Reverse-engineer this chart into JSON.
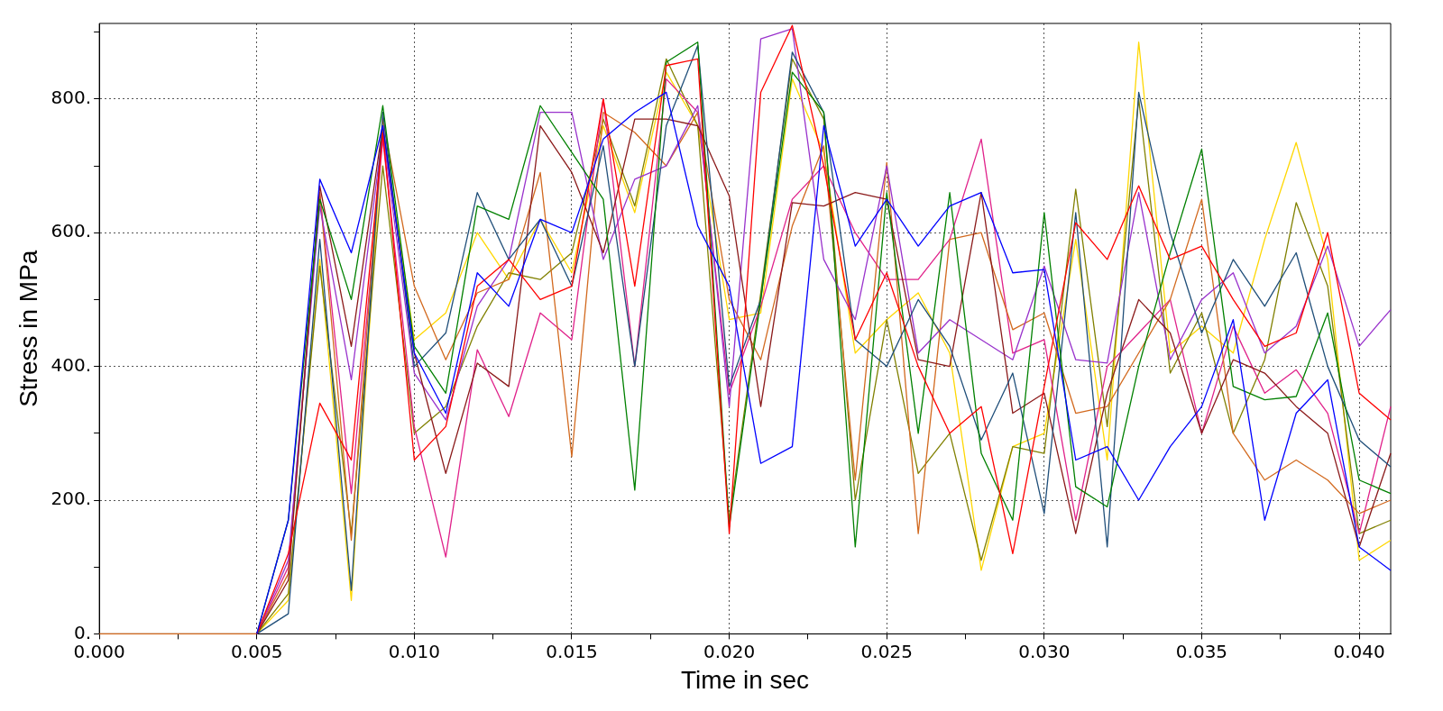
{
  "chart_data": {
    "type": "line",
    "xlabel": "Time in sec",
    "ylabel": "Stress in MPa",
    "x": [
      0,
      0.001,
      0.002,
      0.003,
      0.004,
      0.005,
      0.006,
      0.007,
      0.008,
      0.009,
      0.01,
      0.011,
      0.012,
      0.013,
      0.014,
      0.015,
      0.016,
      0.017,
      0.018,
      0.019,
      0.02,
      0.021,
      0.022,
      0.023,
      0.024,
      0.025,
      0.026,
      0.027,
      0.028,
      0.029,
      0.03,
      0.031,
      0.032,
      0.033,
      0.034,
      0.035,
      0.036,
      0.037,
      0.038,
      0.039,
      0.04,
      0.041
    ],
    "xlim": [
      0,
      0.041
    ],
    "ylim": [
      0,
      913
    ],
    "xticks": [
      {
        "value": 0,
        "label": "0.000"
      },
      {
        "value": 0.0025,
        "label": null
      },
      {
        "value": 0.005,
        "label": "0.005"
      },
      {
        "value": 0.0075,
        "label": null
      },
      {
        "value": 0.01,
        "label": "0.010"
      },
      {
        "value": 0.0125,
        "label": null
      },
      {
        "value": 0.015,
        "label": "0.015"
      },
      {
        "value": 0.0175,
        "label": null
      },
      {
        "value": 0.02,
        "label": "0.020"
      },
      {
        "value": 0.0225,
        "label": null
      },
      {
        "value": 0.025,
        "label": "0.025"
      },
      {
        "value": 0.0275,
        "label": null
      },
      {
        "value": 0.03,
        "label": "0.030"
      },
      {
        "value": 0.0325,
        "label": null
      },
      {
        "value": 0.035,
        "label": "0.035"
      },
      {
        "value": 0.0375,
        "label": null
      },
      {
        "value": 0.04,
        "label": "0.040"
      }
    ],
    "yticks": [
      {
        "value": 0,
        "label": "0."
      },
      {
        "value": 100,
        "label": null
      },
      {
        "value": 200,
        "label": "200."
      },
      {
        "value": 300,
        "label": null
      },
      {
        "value": 400,
        "label": "400."
      },
      {
        "value": 500,
        "label": null
      },
      {
        "value": 600,
        "label": "600."
      },
      {
        "value": 700,
        "label": null
      },
      {
        "value": 800,
        "label": "800."
      },
      {
        "value": 900,
        "label": null
      }
    ],
    "grid": true,
    "legend": false,
    "marker": "none",
    "line_style": "solid",
    "series": [
      {
        "color": "#0000ff",
        "values": [
          null,
          null,
          null,
          null,
          null,
          0,
          170,
          680,
          570,
          760,
          420,
          330,
          540,
          490,
          620,
          600,
          740,
          780,
          810,
          610,
          520,
          255,
          280,
          760,
          580,
          650,
          580,
          640,
          660,
          540,
          545,
          260,
          280,
          200,
          280,
          340,
          470,
          170,
          330,
          380,
          130,
          95
        ]
      },
      {
        "color": "#ff0000",
        "values": [
          null,
          null,
          null,
          null,
          null,
          0,
          120,
          345,
          260,
          750,
          260,
          310,
          520,
          560,
          500,
          520,
          800,
          520,
          850,
          860,
          150,
          810,
          910,
          700,
          440,
          540,
          400,
          300,
          340,
          120,
          370,
          615,
          560,
          670,
          560,
          580,
          500,
          430,
          450,
          600,
          360,
          320
        ]
      },
      {
        "color": "#008000",
        "values": [
          null,
          null,
          null,
          null,
          null,
          0,
          170,
          650,
          500,
          790,
          430,
          360,
          640,
          620,
          790,
          720,
          650,
          215,
          855,
          885,
          160,
          500,
          840,
          780,
          130,
          660,
          300,
          660,
          270,
          170,
          630,
          220,
          190,
          400,
          570,
          725,
          370,
          350,
          355,
          480,
          230,
          210
        ]
      },
      {
        "color": "#1f4e79",
        "values": [
          null,
          null,
          null,
          null,
          null,
          0,
          30,
          590,
          65,
          780,
          400,
          450,
          660,
          560,
          620,
          520,
          730,
          400,
          760,
          880,
          370,
          500,
          870,
          780,
          440,
          400,
          500,
          430,
          290,
          390,
          180,
          630,
          130,
          810,
          600,
          450,
          560,
          490,
          570,
          400,
          290,
          250
        ]
      },
      {
        "color": "#8b1a1a",
        "values": [
          null,
          null,
          null,
          null,
          null,
          0,
          80,
          670,
          430,
          760,
          420,
          240,
          405,
          370,
          760,
          690,
          570,
          770,
          770,
          760,
          655,
          340,
          645,
          640,
          660,
          650,
          410,
          400,
          660,
          330,
          360,
          150,
          360,
          500,
          450,
          300,
          410,
          390,
          340,
          300,
          130,
          270
        ]
      },
      {
        "color": "#9932cc",
        "values": [
          null,
          null,
          null,
          null,
          null,
          0,
          110,
          640,
          380,
          750,
          390,
          320,
          490,
          560,
          780,
          780,
          560,
          680,
          700,
          790,
          340,
          890,
          905,
          560,
          470,
          700,
          420,
          470,
          440,
          410,
          550,
          410,
          405,
          660,
          410,
          500,
          540,
          420,
          460,
          580,
          430,
          485
        ]
      },
      {
        "color": "#d2691e",
        "values": [
          0,
          0,
          0,
          0,
          0,
          0,
          90,
          660,
          140,
          770,
          520,
          410,
          510,
          530,
          690,
          265,
          780,
          750,
          700,
          780,
          500,
          410,
          610,
          730,
          230,
          705,
          150,
          590,
          600,
          455,
          480,
          330,
          340,
          420,
          500,
          650,
          300,
          230,
          260,
          230,
          180,
          200
        ]
      },
      {
        "color": "#e0218a",
        "values": [
          null,
          null,
          null,
          null,
          null,
          0,
          100,
          660,
          210,
          740,
          310,
          115,
          425,
          325,
          480,
          440,
          800,
          400,
          830,
          780,
          360,
          490,
          650,
          700,
          600,
          530,
          530,
          590,
          740,
          420,
          440,
          170,
          400,
          450,
          500,
          300,
          460,
          360,
          395,
          330,
          150,
          340
        ]
      },
      {
        "color": "#808000",
        "values": [
          null,
          null,
          null,
          null,
          null,
          0,
          60,
          550,
          150,
          700,
          300,
          340,
          460,
          540,
          530,
          570,
          770,
          640,
          860,
          760,
          170,
          510,
          860,
          770,
          200,
          470,
          240,
          300,
          110,
          280,
          270,
          665,
          310,
          800,
          390,
          480,
          300,
          410,
          645,
          520,
          150,
          170
        ]
      },
      {
        "color": "#ffd700",
        "values": [
          null,
          null,
          null,
          null,
          null,
          0,
          50,
          560,
          50,
          760,
          440,
          480,
          600,
          530,
          620,
          540,
          760,
          630,
          840,
          760,
          470,
          480,
          830,
          720,
          420,
          470,
          510,
          420,
          95,
          280,
          300,
          590,
          260,
          885,
          420,
          460,
          420,
          590,
          735,
          560,
          110,
          140
        ]
      }
    ]
  }
}
